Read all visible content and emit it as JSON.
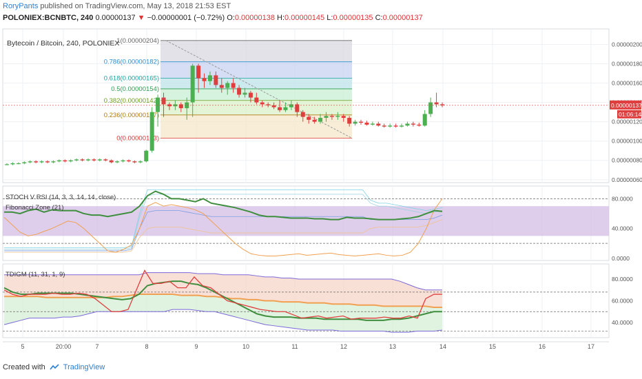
{
  "header": {
    "author": "RoryPants",
    "published": "published on TradingView.com, May 13, 2018 21:53 EST"
  },
  "ohlc": {
    "symbol": "POLONIEX:BCNBTC, 240",
    "last": "0.00000137",
    "change": "−0.00000001 (−0.72%)",
    "o_label": "O:",
    "o": "0.00000138",
    "h_label": "H:",
    "h": "0.00000145",
    "l_label": "L:",
    "l": "0.00000135",
    "c_label": "C:",
    "c": "0.00000137"
  },
  "footer": {
    "created_with": "Created with",
    "brand": "TradingView"
  },
  "colors": {
    "up": "#4caf50",
    "down": "#e03e3e",
    "grid": "#eef0f3",
    "axis": "#555555",
    "price_line": "#e03e3e",
    "purple": "#7b68d9",
    "orange": "#f0a050",
    "green_line": "#3e8e3e"
  },
  "chart_data": [
    {
      "type": "candlestick",
      "title": "Bytecoin / Bitcoin, 240, POLONIEX",
      "y_ticks": [
        "0.00000200",
        "0.00000180",
        "0.00000160",
        "0.00000140",
        "0.00000120",
        "0.00000100",
        "0.00000080",
        "0.00000060"
      ],
      "y_tick_values": [
        200,
        180,
        160,
        140,
        120,
        100,
        80,
        60
      ],
      "ylim": [
        57,
        216
      ],
      "x_ticks": [
        "5",
        "20:00",
        "7",
        "8",
        "9",
        "10",
        "11",
        "12",
        "13",
        "14",
        "15",
        "16",
        "17"
      ],
      "last_price_label": "0.00000137",
      "countdown_label": "01:06:14",
      "last_price": 137,
      "candles": [
        [
          76,
          76,
          75,
          77
        ],
        [
          76,
          77,
          75,
          78
        ],
        [
          77,
          77,
          76,
          78
        ],
        [
          77,
          78,
          76,
          79
        ],
        [
          78,
          79,
          77,
          80
        ],
        [
          79,
          78,
          77,
          80
        ],
        [
          78,
          79,
          77,
          80
        ],
        [
          79,
          78,
          77,
          80
        ],
        [
          78,
          79,
          77,
          80
        ],
        [
          79,
          80,
          78,
          81
        ],
        [
          80,
          79,
          78,
          81
        ],
        [
          79,
          80,
          78,
          81
        ],
        [
          80,
          81,
          79,
          82
        ],
        [
          81,
          80,
          79,
          82
        ],
        [
          80,
          81,
          79,
          82
        ],
        [
          81,
          80,
          79,
          82
        ],
        [
          80,
          81,
          79,
          82
        ],
        [
          81,
          80,
          79,
          82
        ],
        [
          80,
          78,
          77,
          81
        ],
        [
          78,
          79,
          77,
          80
        ],
        [
          79,
          80,
          78,
          81
        ],
        [
          80,
          79,
          78,
          81
        ],
        [
          79,
          78,
          77,
          80
        ],
        [
          78,
          79,
          77,
          80
        ],
        [
          79,
          90,
          78,
          91
        ],
        [
          90,
          130,
          88,
          135
        ],
        [
          130,
          145,
          115,
          148
        ],
        [
          145,
          138,
          125,
          150
        ],
        [
          138,
          136,
          132,
          140
        ],
        [
          136,
          138,
          132,
          142
        ],
        [
          138,
          134,
          130,
          140
        ],
        [
          134,
          140,
          122,
          145
        ],
        [
          140,
          178,
          125,
          180
        ],
        [
          178,
          165,
          150,
          180
        ],
        [
          165,
          162,
          155,
          170
        ],
        [
          162,
          168,
          158,
          172
        ],
        [
          168,
          158,
          155,
          172
        ],
        [
          158,
          155,
          150,
          165
        ],
        [
          155,
          160,
          148,
          162
        ],
        [
          160,
          155,
          150,
          165
        ],
        [
          155,
          148,
          145,
          158
        ],
        [
          148,
          150,
          145,
          155
        ],
        [
          150,
          145,
          140,
          152
        ],
        [
          145,
          140,
          138,
          150
        ],
        [
          140,
          138,
          135,
          142
        ],
        [
          138,
          137,
          135,
          140
        ],
        [
          137,
          135,
          133,
          140
        ],
        [
          135,
          132,
          130,
          142
        ],
        [
          132,
          135,
          130,
          140
        ],
        [
          135,
          138,
          132,
          142
        ],
        [
          138,
          130,
          125,
          140
        ],
        [
          130,
          125,
          120,
          132
        ],
        [
          125,
          122,
          118,
          128
        ],
        [
          122,
          120,
          118,
          125
        ],
        [
          120,
          124,
          118,
          128
        ],
        [
          124,
          126,
          120,
          130
        ],
        [
          126,
          125,
          122,
          128
        ],
        [
          125,
          126,
          122,
          130
        ],
        [
          126,
          124,
          120,
          128
        ],
        [
          124,
          118,
          115,
          126
        ],
        [
          118,
          120,
          116,
          122
        ],
        [
          120,
          119,
          117,
          122
        ],
        [
          119,
          117,
          116,
          121
        ],
        [
          117,
          118,
          116,
          120
        ],
        [
          118,
          116,
          115,
          120
        ],
        [
          116,
          115,
          114,
          118
        ],
        [
          115,
          116,
          114,
          118
        ],
        [
          116,
          115,
          114,
          118
        ],
        [
          115,
          116,
          114,
          118
        ],
        [
          116,
          118,
          115,
          120
        ],
        [
          118,
          117,
          115,
          120
        ],
        [
          117,
          116,
          115,
          119
        ],
        [
          116,
          128,
          115,
          132
        ],
        [
          128,
          140,
          125,
          145
        ],
        [
          140,
          138,
          135,
          150
        ],
        [
          138,
          137,
          135,
          140
        ]
      ],
      "fibonacci": [
        {
          "level": "1",
          "label": "1(0.00000204)",
          "value": 204
        },
        {
          "level": "0.786",
          "label": "0.786(0.00000182)",
          "value": 182
        },
        {
          "level": "0.618",
          "label": "0.618(0.00000165)",
          "value": 165
        },
        {
          "level": "0.5",
          "label": "0.5(0.00000154)",
          "value": 154
        },
        {
          "level": "0.382",
          "label": "0.382(0.00000142)",
          "value": 142
        },
        {
          "level": "0.236",
          "label": "0.236(0.00000127)",
          "value": 127
        },
        {
          "level": "0",
          "label": "0(0.00000103)",
          "value": 103
        }
      ]
    },
    {
      "type": "line",
      "title": "STOCH V RSI (14, 3, 3, 14, 14, close)",
      "subtitle": "Fibonacci Zone (21)",
      "y_ticks": [
        "80.0000",
        "40.0000",
        "0.0000"
      ],
      "y_tick_values": [
        80,
        40,
        0
      ],
      "ylim": [
        -3,
        97
      ],
      "series": [
        {
          "values": [
            62,
            62,
            60,
            64,
            66,
            62,
            65,
            64,
            64,
            64,
            60,
            58,
            58,
            56,
            58,
            60,
            62,
            70,
            84,
            90,
            86,
            80,
            80,
            78,
            76,
            80,
            74,
            72,
            70,
            68,
            65,
            62,
            58,
            56,
            56,
            55,
            54,
            54,
            54,
            53,
            53,
            52,
            52,
            55,
            54,
            54,
            53,
            52,
            52,
            52,
            53,
            54,
            56,
            60,
            64,
            63
          ]
        },
        {
          "values": [
            55,
            45,
            35,
            30,
            32,
            36,
            40,
            45,
            50,
            48,
            40,
            30,
            20,
            10,
            8,
            12,
            18,
            40,
            70,
            75,
            70,
            72,
            70,
            68,
            65,
            60,
            50,
            40,
            30,
            20,
            12,
            6,
            4,
            3,
            3,
            4,
            5,
            6,
            4,
            5,
            6,
            7,
            5,
            4,
            3,
            4,
            5,
            6,
            4,
            3,
            4,
            8,
            20,
            40,
            65,
            80
          ]
        }
      ],
      "bands": [
        [
          10,
          90
        ],
        [
          25,
          80
        ],
        [
          35,
          70
        ],
        [
          45,
          65
        ]
      ]
    },
    {
      "type": "line",
      "title": "TDIGM (11, 31, 1, 9)",
      "y_ticks": [
        "80.0000",
        "60.0000",
        "40.0000"
      ],
      "y_tick_values": [
        80,
        60,
        40
      ],
      "ylim": [
        26,
        94
      ],
      "series": [
        {
          "values": [
            70,
            66,
            64,
            66,
            66,
            66,
            67,
            66,
            66,
            67,
            66,
            62,
            56,
            50,
            50,
            52,
            70,
            88,
            76,
            76,
            78,
            72,
            72,
            82,
            74,
            72,
            66,
            60,
            58,
            56,
            54,
            52,
            51,
            50,
            50,
            47,
            44,
            45,
            46,
            44,
            45,
            46,
            43,
            44,
            44,
            44,
            45,
            44,
            44,
            46,
            44,
            62,
            66,
            66
          ]
        },
        {
          "values": [
            72,
            68,
            66,
            66,
            67,
            67,
            67,
            67,
            67,
            66,
            65,
            64,
            63,
            62,
            61,
            62,
            66,
            74,
            76,
            77,
            78,
            78,
            76,
            75,
            72,
            68,
            64,
            60,
            56,
            52,
            48,
            46,
            45,
            45,
            45,
            44,
            44,
            44,
            43,
            43,
            43,
            43,
            43,
            42,
            42,
            42,
            43,
            43,
            44,
            46,
            48,
            50,
            50
          ]
        },
        {
          "values": [
            64,
            64,
            64,
            64,
            64,
            63,
            63,
            63,
            63,
            63,
            63,
            63,
            63,
            64,
            64,
            65,
            66,
            66,
            66,
            66,
            66,
            65,
            65,
            65,
            64,
            64,
            63,
            62,
            62,
            61,
            61,
            60,
            60,
            59,
            59,
            59,
            58,
            58,
            58,
            57,
            57,
            57,
            56,
            56,
            56,
            55,
            55,
            55,
            55,
            55,
            55,
            54,
            54
          ]
        },
        {
          "values": [
            84,
            84,
            84,
            84,
            84,
            84,
            84,
            84,
            84,
            84,
            84,
            84,
            84,
            84,
            84,
            84,
            84,
            86,
            86,
            86,
            86,
            86,
            86,
            85,
            85,
            85,
            84,
            84,
            84,
            84,
            83,
            82,
            82,
            81,
            81,
            80,
            80,
            80,
            80,
            80,
            80,
            80,
            80,
            80,
            80,
            80,
            80,
            78,
            75,
            72,
            70,
            70,
            70
          ]
        },
        {
          "values": [
            38,
            40,
            42,
            44,
            44,
            44,
            44,
            45,
            45,
            46,
            48,
            50,
            50,
            50,
            50,
            50,
            50,
            50,
            50,
            50,
            52,
            52,
            52,
            51,
            50,
            50,
            48,
            46,
            44,
            42,
            40,
            38,
            37,
            36,
            35,
            34,
            33,
            33,
            33,
            33,
            32,
            32,
            32,
            32,
            32,
            32,
            31,
            31,
            31,
            32,
            32,
            32,
            33
          ]
        }
      ],
      "levels": [
        68,
        50,
        32
      ]
    }
  ]
}
